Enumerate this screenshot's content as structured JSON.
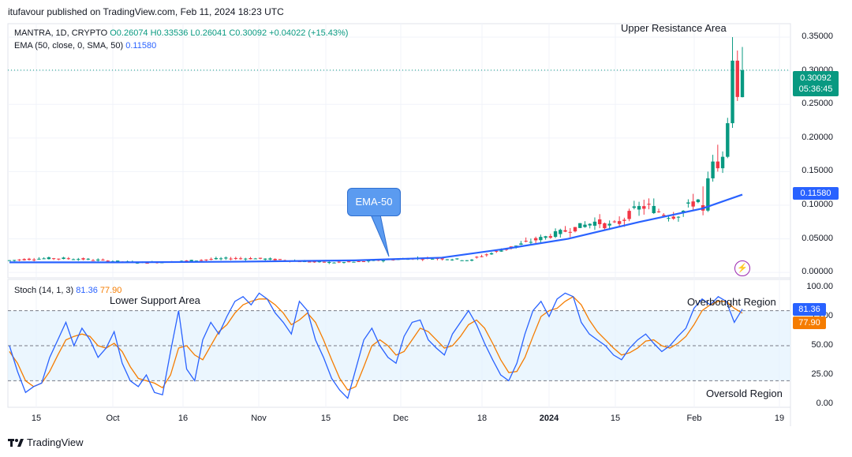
{
  "header": {
    "published": "itufavour published on TradingView.com, Feb 11, 2024 18:23 UTC"
  },
  "legend": {
    "symbol": "MANTRA, 1D, CRYPTO",
    "open": "O0.26074",
    "high": "H0.33536",
    "low": "L0.26041",
    "close": "C0.30092",
    "change": "+0.04022 (+15.43%)",
    "ema_label": "EMA (50, close, 0, SMA, 50)",
    "ema_value": "0.11580"
  },
  "stoch_legend": {
    "label": "Stoch (14, 1, 3)",
    "k_value": "81.36",
    "d_value": "77.90"
  },
  "annotations": {
    "upper": "Upper Resistance Area",
    "lower": "Lower Support Area",
    "overbought": "Overbought Region",
    "oversold": "Oversold Region",
    "ema_callout": "EMA-50"
  },
  "tags": {
    "price": "0.30092",
    "countdown": "05:36:45",
    "ema": "0.11580",
    "k": "81.36",
    "d": "77.90"
  },
  "brand": "TradingView",
  "colors": {
    "up": "#089981",
    "down": "#f23645",
    "ema": "#2962ff",
    "k_line": "#2962ff",
    "d_line": "#f57c00",
    "stoch_band": "#e3f2fd"
  },
  "chart_data": [
    {
      "type": "candlestick",
      "title": "MANTRA, 1D, CRYPTO",
      "y_ticks": [
        "0.35000",
        "0.30000",
        "0.25000",
        "0.20000",
        "0.15000",
        "0.10000",
        "0.05000",
        "0.00000"
      ],
      "ylim": [
        -0.008,
        0.37
      ],
      "x_ticks": [
        "15",
        "Oct",
        "16",
        "Nov",
        "15",
        "Dec",
        "18",
        "2024",
        "15",
        "Feb",
        "19"
      ],
      "grid": true,
      "series": [
        {
          "name": "MANTRA",
          "ohlc_recent": [
            [
              0.1,
              0.128,
              0.085,
              0.092
            ],
            [
              0.092,
              0.15,
              0.09,
              0.14
            ],
            [
              0.14,
              0.175,
              0.135,
              0.165
            ],
            [
              0.165,
              0.19,
              0.15,
              0.155
            ],
            [
              0.155,
              0.18,
              0.148,
              0.172
            ],
            [
              0.172,
              0.23,
              0.17,
              0.222
            ],
            [
              0.222,
              0.35,
              0.215,
              0.315
            ],
            [
              0.315,
              0.33,
              0.255,
              0.261
            ],
            [
              0.26074,
              0.33536,
              0.26041,
              0.30092
            ]
          ]
        },
        {
          "name": "EMA (50, close, 0, SMA, 50)",
          "values_sampled": [
            0.015,
            0.015,
            0.016,
            0.018,
            0.022,
            0.035,
            0.05,
            0.075,
            0.095,
            0.1158
          ]
        }
      ]
    },
    {
      "type": "line",
      "title": "Stoch (14, 1, 3)",
      "y_ticks": [
        "100.00",
        "75.00",
        "50.00",
        "25.00",
        "0.00"
      ],
      "ylim": [
        0,
        100
      ],
      "bands": [
        20,
        50,
        80
      ],
      "series": [
        {
          "name": "%K",
          "values": [
            50,
            28,
            10,
            15,
            18,
            40,
            55,
            70,
            50,
            65,
            55,
            40,
            48,
            62,
            35,
            20,
            15,
            25,
            10,
            8,
            45,
            80,
            30,
            20,
            55,
            70,
            60,
            75,
            88,
            92,
            85,
            95,
            90,
            78,
            70,
            60,
            88,
            80,
            55,
            40,
            22,
            12,
            5,
            30,
            55,
            65,
            50,
            40,
            35,
            58,
            70,
            72,
            55,
            48,
            42,
            60,
            70,
            80,
            68,
            52,
            38,
            25,
            20,
            35,
            60,
            80,
            88,
            75,
            90,
            95,
            92,
            70,
            60,
            55,
            50,
            42,
            38,
            48,
            55,
            60,
            52,
            45,
            50,
            58,
            65,
            82,
            90,
            85,
            92,
            88,
            70,
            81.36
          ]
        },
        {
          "name": "%D",
          "values": [
            45,
            35,
            20,
            15,
            18,
            28,
            42,
            55,
            58,
            60,
            58,
            50,
            48,
            52,
            45,
            32,
            22,
            20,
            18,
            14,
            25,
            48,
            50,
            42,
            38,
            50,
            62,
            68,
            78,
            85,
            88,
            90,
            90,
            85,
            78,
            68,
            72,
            78,
            70,
            55,
            38,
            22,
            12,
            15,
            32,
            50,
            55,
            50,
            42,
            45,
            55,
            65,
            62,
            55,
            48,
            50,
            58,
            68,
            72,
            65,
            52,
            38,
            27,
            28,
            40,
            58,
            75,
            80,
            82,
            88,
            92,
            85,
            72,
            62,
            55,
            48,
            42,
            44,
            48,
            54,
            55,
            50,
            48,
            52,
            58,
            68,
            80,
            85,
            88,
            88,
            82,
            77.9
          ]
        }
      ]
    }
  ]
}
